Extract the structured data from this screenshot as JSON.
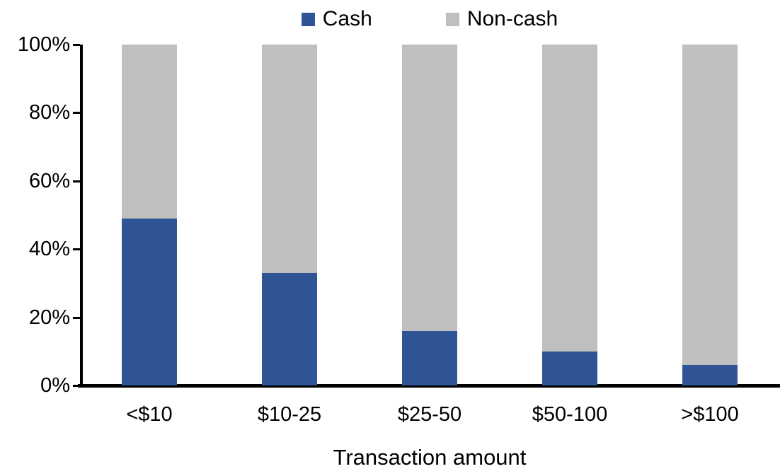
{
  "chart_data": {
    "type": "bar",
    "stacked": true,
    "orientation": "vertical",
    "title": "",
    "xlabel": "Transaction amount",
    "ylabel": "",
    "ylim": [
      0,
      100
    ],
    "yticks": [
      "0%",
      "20%",
      "40%",
      "60%",
      "80%",
      "100%"
    ],
    "grid": false,
    "legend_position": "top-center",
    "background_color": "#FFFFFF",
    "axis_color": "#000000",
    "categories": [
      "<$10",
      "$10-25",
      "$25-50",
      "$50-100",
      ">$100"
    ],
    "series": [
      {
        "name": "Cash",
        "color": "#2F5597",
        "values": [
          49,
          33,
          16,
          10,
          6
        ]
      },
      {
        "name": "Non-cash",
        "color": "#BFBFBF",
        "values": [
          51,
          67,
          84,
          90,
          94
        ]
      }
    ]
  }
}
